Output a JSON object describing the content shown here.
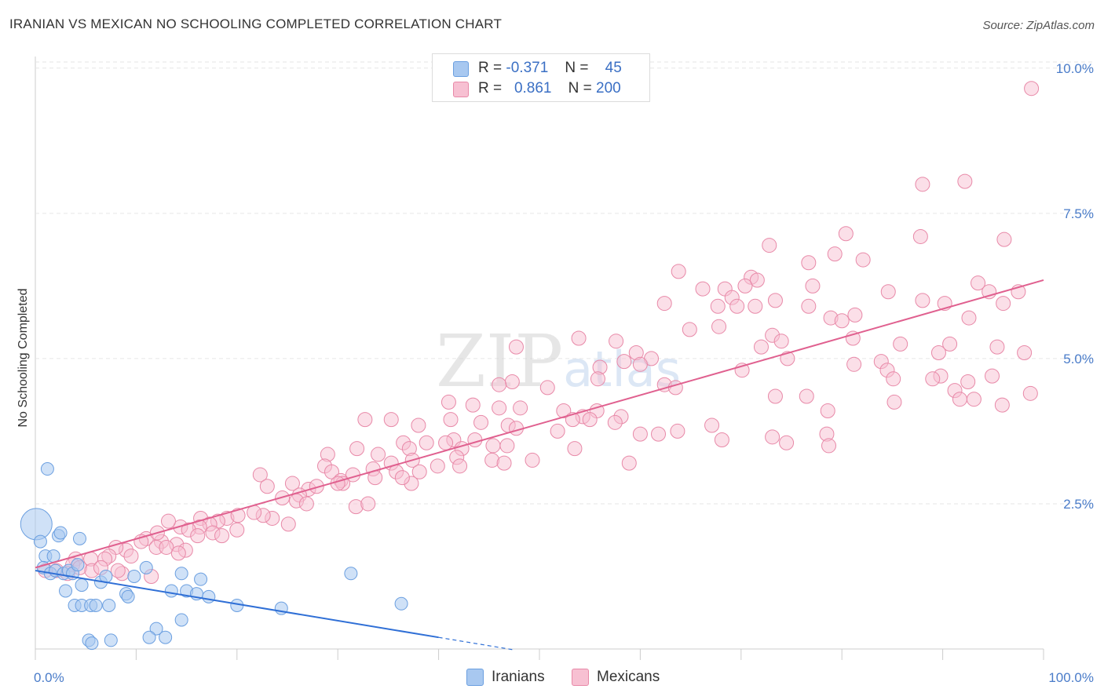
{
  "title": "IRANIAN VS MEXICAN NO SCHOOLING COMPLETED CORRELATION CHART",
  "source": "Source: ZipAtlas.com",
  "watermark": "ZIPatlas",
  "colors": {
    "iranians_fill": "#a8c8f0",
    "iranians_stroke": "#6b9fe0",
    "iranians_line": "#2f6fd6",
    "mexicans_fill": "#f7c0d2",
    "mexicans_stroke": "#e889a8",
    "mexicans_line": "#e0608f",
    "tick_text": "#4a7cc9",
    "grid": "#e6e6e6"
  },
  "legend": {
    "rows": [
      {
        "r_label": "R =",
        "r_value": "-0.371",
        "n_label": "N =",
        "n_value": "45"
      },
      {
        "r_label": "R =",
        "r_value": "0.861",
        "n_label": "N =",
        "n_value": "200"
      }
    ]
  },
  "bottom_legend": {
    "items": [
      "Iranians",
      "Mexicans"
    ]
  },
  "chart_data": {
    "type": "scatter",
    "ylabel": "No Schooling Completed",
    "xlabel": "",
    "xlim": [
      0,
      100
    ],
    "ylim": [
      0,
      10.2
    ],
    "x_tick_labels": [
      "0.0%",
      "100.0%"
    ],
    "y_ticks": [
      2.5,
      5.0,
      7.5,
      10.0
    ],
    "y_tick_labels": [
      "2.5%",
      "5.0%",
      "7.5%",
      "10.0%"
    ],
    "grid": true,
    "legend_position": "top-center",
    "series": [
      {
        "name": "Iranians",
        "r": -0.371,
        "n": 45,
        "trend": {
          "x0": 0,
          "y0": 1.35,
          "x1": 40,
          "y1": 0.2,
          "dashed_to_x": 47.5
        },
        "points": [
          [
            0.1,
            2.15
          ],
          [
            0.5,
            1.85
          ],
          [
            1.2,
            3.1
          ],
          [
            1.0,
            1.6
          ],
          [
            1.8,
            1.6
          ],
          [
            2.3,
            1.95
          ],
          [
            2.5,
            2.0
          ],
          [
            4.4,
            1.9
          ],
          [
            0.8,
            1.4
          ],
          [
            1.5,
            1.3
          ],
          [
            2.0,
            1.35
          ],
          [
            2.8,
            1.3
          ],
          [
            3.3,
            1.35
          ],
          [
            3.7,
            1.3
          ],
          [
            4.2,
            1.45
          ],
          [
            3.0,
            1.0
          ],
          [
            4.6,
            1.1
          ],
          [
            6.5,
            1.15
          ],
          [
            7.0,
            1.25
          ],
          [
            9.8,
            1.25
          ],
          [
            11.0,
            1.4
          ],
          [
            13.5,
            1.0
          ],
          [
            14.5,
            1.3
          ],
          [
            15.0,
            1.0
          ],
          [
            16.4,
            1.2
          ],
          [
            16.0,
            0.95
          ],
          [
            17.2,
            0.9
          ],
          [
            9.0,
            0.95
          ],
          [
            9.2,
            0.9
          ],
          [
            3.9,
            0.75
          ],
          [
            4.6,
            0.75
          ],
          [
            5.5,
            0.75
          ],
          [
            7.3,
            0.75
          ],
          [
            6.0,
            0.75
          ],
          [
            20.0,
            0.75
          ],
          [
            24.4,
            0.7
          ],
          [
            36.3,
            0.78
          ],
          [
            31.3,
            1.3
          ],
          [
            14.5,
            0.5
          ],
          [
            12.0,
            0.35
          ],
          [
            11.3,
            0.2
          ],
          [
            12.9,
            0.2
          ],
          [
            5.3,
            0.15
          ],
          [
            7.5,
            0.15
          ],
          [
            5.6,
            0.1
          ]
        ],
        "sizes": [
          36,
          12,
          10,
          10,
          10,
          10,
          10,
          10,
          10,
          10,
          10,
          10,
          10,
          10,
          10,
          10,
          10,
          10,
          10,
          10,
          10,
          10,
          10,
          10,
          10,
          10,
          10,
          10,
          10,
          10,
          10,
          10,
          10,
          10,
          10,
          10,
          10,
          10,
          10,
          10,
          10,
          10,
          10,
          10,
          10
        ]
      },
      {
        "name": "Mexicans",
        "r": 0.861,
        "n": 200,
        "trend": {
          "x0": 0,
          "y0": 1.4,
          "x1": 100,
          "y1": 6.35
        },
        "points": [
          [
            98.8,
            9.65
          ],
          [
            88.0,
            8.0
          ],
          [
            92.2,
            8.05
          ],
          [
            80.4,
            7.15
          ],
          [
            87.8,
            7.1
          ],
          [
            96.1,
            7.05
          ],
          [
            72.8,
            6.95
          ],
          [
            79.3,
            6.8
          ],
          [
            82.1,
            6.7
          ],
          [
            76.7,
            6.65
          ],
          [
            63.8,
            6.5
          ],
          [
            71.0,
            6.4
          ],
          [
            71.6,
            6.35
          ],
          [
            93.5,
            6.3
          ],
          [
            77.1,
            6.25
          ],
          [
            70.4,
            6.25
          ],
          [
            66.2,
            6.2
          ],
          [
            68.4,
            6.2
          ],
          [
            84.6,
            6.15
          ],
          [
            94.6,
            6.15
          ],
          [
            97.5,
            6.15
          ],
          [
            69.1,
            6.05
          ],
          [
            73.4,
            6.0
          ],
          [
            88.0,
            6.0
          ],
          [
            90.2,
            5.95
          ],
          [
            96.0,
            5.95
          ],
          [
            62.4,
            5.95
          ],
          [
            69.6,
            5.9
          ],
          [
            67.7,
            5.9
          ],
          [
            71.4,
            5.9
          ],
          [
            76.7,
            5.9
          ],
          [
            81.3,
            5.75
          ],
          [
            78.9,
            5.7
          ],
          [
            92.6,
            5.7
          ],
          [
            80.0,
            5.65
          ],
          [
            64.9,
            5.5
          ],
          [
            67.8,
            5.55
          ],
          [
            73.1,
            5.4
          ],
          [
            81.1,
            5.35
          ],
          [
            53.9,
            5.35
          ],
          [
            57.6,
            5.3
          ],
          [
            74.0,
            5.3
          ],
          [
            90.7,
            5.25
          ],
          [
            85.8,
            5.25
          ],
          [
            95.4,
            5.2
          ],
          [
            47.7,
            5.2
          ],
          [
            72.0,
            5.2
          ],
          [
            89.6,
            5.1
          ],
          [
            98.1,
            5.1
          ],
          [
            59.6,
            5.1
          ],
          [
            61.1,
            5.0
          ],
          [
            74.6,
            5.0
          ],
          [
            58.4,
            4.95
          ],
          [
            83.9,
            4.95
          ],
          [
            81.2,
            4.9
          ],
          [
            60.0,
            4.9
          ],
          [
            56.0,
            4.85
          ],
          [
            70.1,
            4.8
          ],
          [
            84.5,
            4.8
          ],
          [
            89.8,
            4.7
          ],
          [
            94.9,
            4.7
          ],
          [
            55.8,
            4.65
          ],
          [
            85.1,
            4.65
          ],
          [
            89.0,
            4.65
          ],
          [
            92.5,
            4.6
          ],
          [
            47.3,
            4.6
          ],
          [
            62.4,
            4.55
          ],
          [
            46.0,
            4.55
          ],
          [
            50.8,
            4.5
          ],
          [
            63.5,
            4.5
          ],
          [
            91.2,
            4.45
          ],
          [
            98.7,
            4.4
          ],
          [
            73.4,
            4.35
          ],
          [
            76.5,
            4.35
          ],
          [
            91.7,
            4.3
          ],
          [
            93.1,
            4.3
          ],
          [
            85.2,
            4.25
          ],
          [
            95.9,
            4.2
          ],
          [
            41.0,
            4.25
          ],
          [
            43.4,
            4.2
          ],
          [
            48.1,
            4.15
          ],
          [
            46.0,
            4.15
          ],
          [
            55.7,
            4.1
          ],
          [
            52.4,
            4.1
          ],
          [
            54.3,
            4.0
          ],
          [
            58.1,
            4.0
          ],
          [
            78.6,
            4.1
          ],
          [
            53.3,
            3.95
          ],
          [
            55.0,
            3.95
          ],
          [
            57.5,
            3.9
          ],
          [
            67.1,
            3.85
          ],
          [
            46.9,
            3.85
          ],
          [
            38.0,
            3.85
          ],
          [
            41.2,
            3.95
          ],
          [
            44.2,
            3.9
          ],
          [
            47.7,
            3.8
          ],
          [
            51.8,
            3.75
          ],
          [
            63.7,
            3.75
          ],
          [
            73.1,
            3.65
          ],
          [
            35.3,
            3.95
          ],
          [
            32.7,
            3.95
          ],
          [
            60.0,
            3.7
          ],
          [
            61.8,
            3.7
          ],
          [
            68.1,
            3.6
          ],
          [
            78.5,
            3.7
          ],
          [
            74.5,
            3.55
          ],
          [
            78.7,
            3.5
          ],
          [
            38.8,
            3.55
          ],
          [
            45.4,
            3.5
          ],
          [
            41.5,
            3.6
          ],
          [
            31.9,
            3.45
          ],
          [
            46.8,
            3.5
          ],
          [
            43.6,
            3.6
          ],
          [
            40.7,
            3.55
          ],
          [
            42.3,
            3.45
          ],
          [
            36.5,
            3.55
          ],
          [
            34.0,
            3.35
          ],
          [
            29.0,
            3.35
          ],
          [
            37.1,
            3.45
          ],
          [
            28.7,
            3.15
          ],
          [
            41.8,
            3.3
          ],
          [
            45.3,
            3.25
          ],
          [
            49.3,
            3.25
          ],
          [
            53.5,
            3.45
          ],
          [
            46.5,
            3.2
          ],
          [
            35.3,
            3.2
          ],
          [
            35.8,
            3.05
          ],
          [
            33.5,
            3.1
          ],
          [
            37.4,
            3.25
          ],
          [
            38.1,
            3.05
          ],
          [
            42.1,
            3.15
          ],
          [
            58.9,
            3.2
          ],
          [
            39.9,
            3.15
          ],
          [
            31.5,
            3.0
          ],
          [
            29.4,
            3.05
          ],
          [
            30.3,
            2.9
          ],
          [
            22.3,
            3.0
          ],
          [
            33.7,
            2.95
          ],
          [
            25.5,
            2.85
          ],
          [
            27.1,
            2.75
          ],
          [
            37.3,
            2.85
          ],
          [
            27.9,
            2.8
          ],
          [
            30.5,
            2.85
          ],
          [
            36.4,
            2.95
          ],
          [
            23.0,
            2.8
          ],
          [
            30.0,
            2.85
          ],
          [
            26.2,
            2.65
          ],
          [
            25.9,
            2.55
          ],
          [
            24.5,
            2.6
          ],
          [
            26.9,
            2.5
          ],
          [
            19.0,
            2.25
          ],
          [
            23.5,
            2.25
          ],
          [
            25.1,
            2.15
          ],
          [
            22.6,
            2.3
          ],
          [
            20.1,
            2.3
          ],
          [
            18.1,
            2.2
          ],
          [
            16.4,
            2.25
          ],
          [
            17.3,
            2.15
          ],
          [
            16.3,
            2.1
          ],
          [
            14.4,
            2.1
          ],
          [
            15.2,
            2.05
          ],
          [
            13.2,
            2.2
          ],
          [
            20.0,
            2.05
          ],
          [
            17.6,
            2.0
          ],
          [
            18.5,
            1.95
          ],
          [
            16.1,
            1.95
          ],
          [
            14.0,
            1.8
          ],
          [
            12.5,
            1.85
          ],
          [
            11.0,
            1.9
          ],
          [
            10.5,
            1.85
          ],
          [
            9.0,
            1.7
          ],
          [
            8.0,
            1.75
          ],
          [
            12.0,
            1.75
          ],
          [
            13.0,
            1.75
          ],
          [
            14.9,
            1.7
          ],
          [
            7.3,
            1.6
          ],
          [
            6.9,
            1.55
          ],
          [
            5.5,
            1.55
          ],
          [
            9.5,
            1.6
          ],
          [
            4.0,
            1.55
          ],
          [
            3.7,
            1.45
          ],
          [
            2.1,
            1.35
          ],
          [
            1.0,
            1.35
          ],
          [
            3.2,
            1.3
          ],
          [
            4.4,
            1.4
          ],
          [
            5.6,
            1.35
          ],
          [
            6.5,
            1.4
          ],
          [
            8.6,
            1.3
          ],
          [
            11.5,
            1.25
          ],
          [
            14.2,
            1.65
          ],
          [
            8.2,
            1.35
          ],
          [
            31.8,
            2.45
          ],
          [
            21.7,
            2.35
          ],
          [
            33.0,
            2.5
          ],
          [
            12.1,
            2.0
          ]
        ]
      }
    ]
  }
}
